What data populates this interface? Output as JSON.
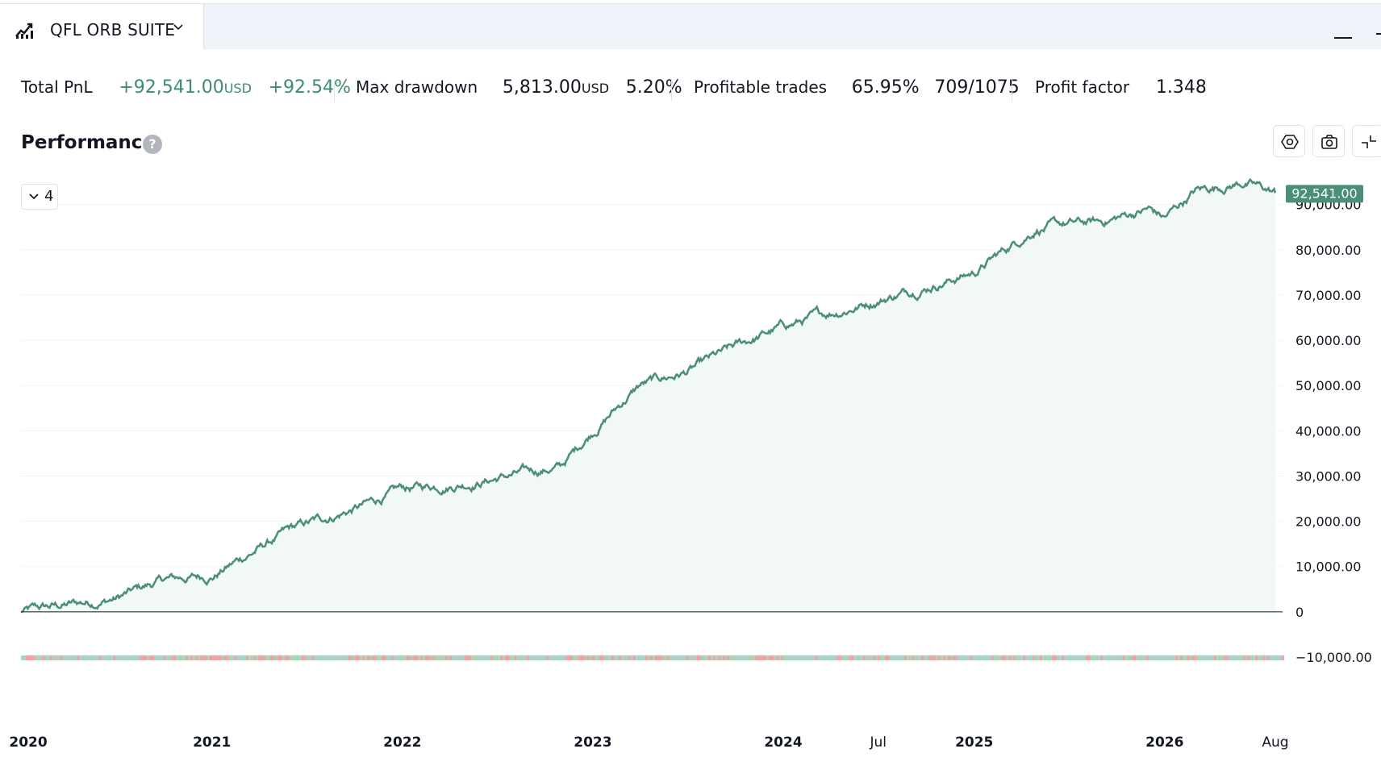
{
  "tab": {
    "title": "QFL ORB SUITE"
  },
  "stats": {
    "total_pnl": {
      "label": "Total PnL",
      "value": "+92,541.00",
      "currency": "USD",
      "percent": "+92.54%"
    },
    "max_drawdown": {
      "label": "Max drawdown",
      "value": "5,813.00",
      "currency": "USD",
      "percent": "5.20%"
    },
    "profitable_trades": {
      "label": "Profitable trades",
      "percent": "65.95%",
      "ratio": "709/1075"
    },
    "profit_factor": {
      "label": "Profit factor",
      "value": "1.348"
    }
  },
  "performance": {
    "title": "Performance",
    "help": "?",
    "collapse_count": "4"
  },
  "colors": {
    "line": "#4a8f76",
    "fill": "#f2f8f5",
    "last_badge": "#4a8f76",
    "profit_bar": "#a9d4c2",
    "loss_bar": "#f4a3a3",
    "positive_text": "#3d8c6e"
  },
  "icons": [
    "chart-line-icon",
    "chevron-down-icon",
    "minimize-icon",
    "settings-icon",
    "camera-icon",
    "collapse-icon",
    "help-icon"
  ],
  "chart_data": {
    "type": "area",
    "series": [
      {
        "x": [
          "2020-01",
          "2020-07",
          "2020-10",
          "2021-01",
          "2021-06",
          "2021-11",
          "2022-01",
          "2022-06",
          "2022-11",
          "2023-01",
          "2023-04",
          "2023-07",
          "2023-11",
          "2024-01",
          "2024-06",
          "2024-10",
          "2025-01",
          "2025-05",
          "2025-09",
          "2025-12",
          "2026-01",
          "2026-03",
          "2026-06",
          "2026-08"
        ],
        "y": [
          0,
          3000,
          7000,
          8000,
          18000,
          24000,
          27000,
          29000,
          32000,
          40000,
          50000,
          53000,
          60000,
          63000,
          68000,
          72000,
          75000,
          85000,
          86000,
          89000,
          87000,
          93000,
          95000,
          92541
        ]
      }
    ],
    "x_ticks": [
      "2020",
      "2021",
      "2022",
      "2023",
      "2024",
      "Jul",
      "2025",
      "2026",
      "Aug"
    ],
    "y_ticks": [
      "90,000.00",
      "80,000.00",
      "70,000.00",
      "60,000.00",
      "50,000.00",
      "40,000.00",
      "30,000.00",
      "20,000.00",
      "10,000.00",
      "0",
      "−10,000.00"
    ],
    "ylim": [
      -10000,
      96000
    ],
    "last_value_label": "92,541.00",
    "grid": true,
    "trade_strip": {
      "profit_fraction": 0.6595
    }
  }
}
